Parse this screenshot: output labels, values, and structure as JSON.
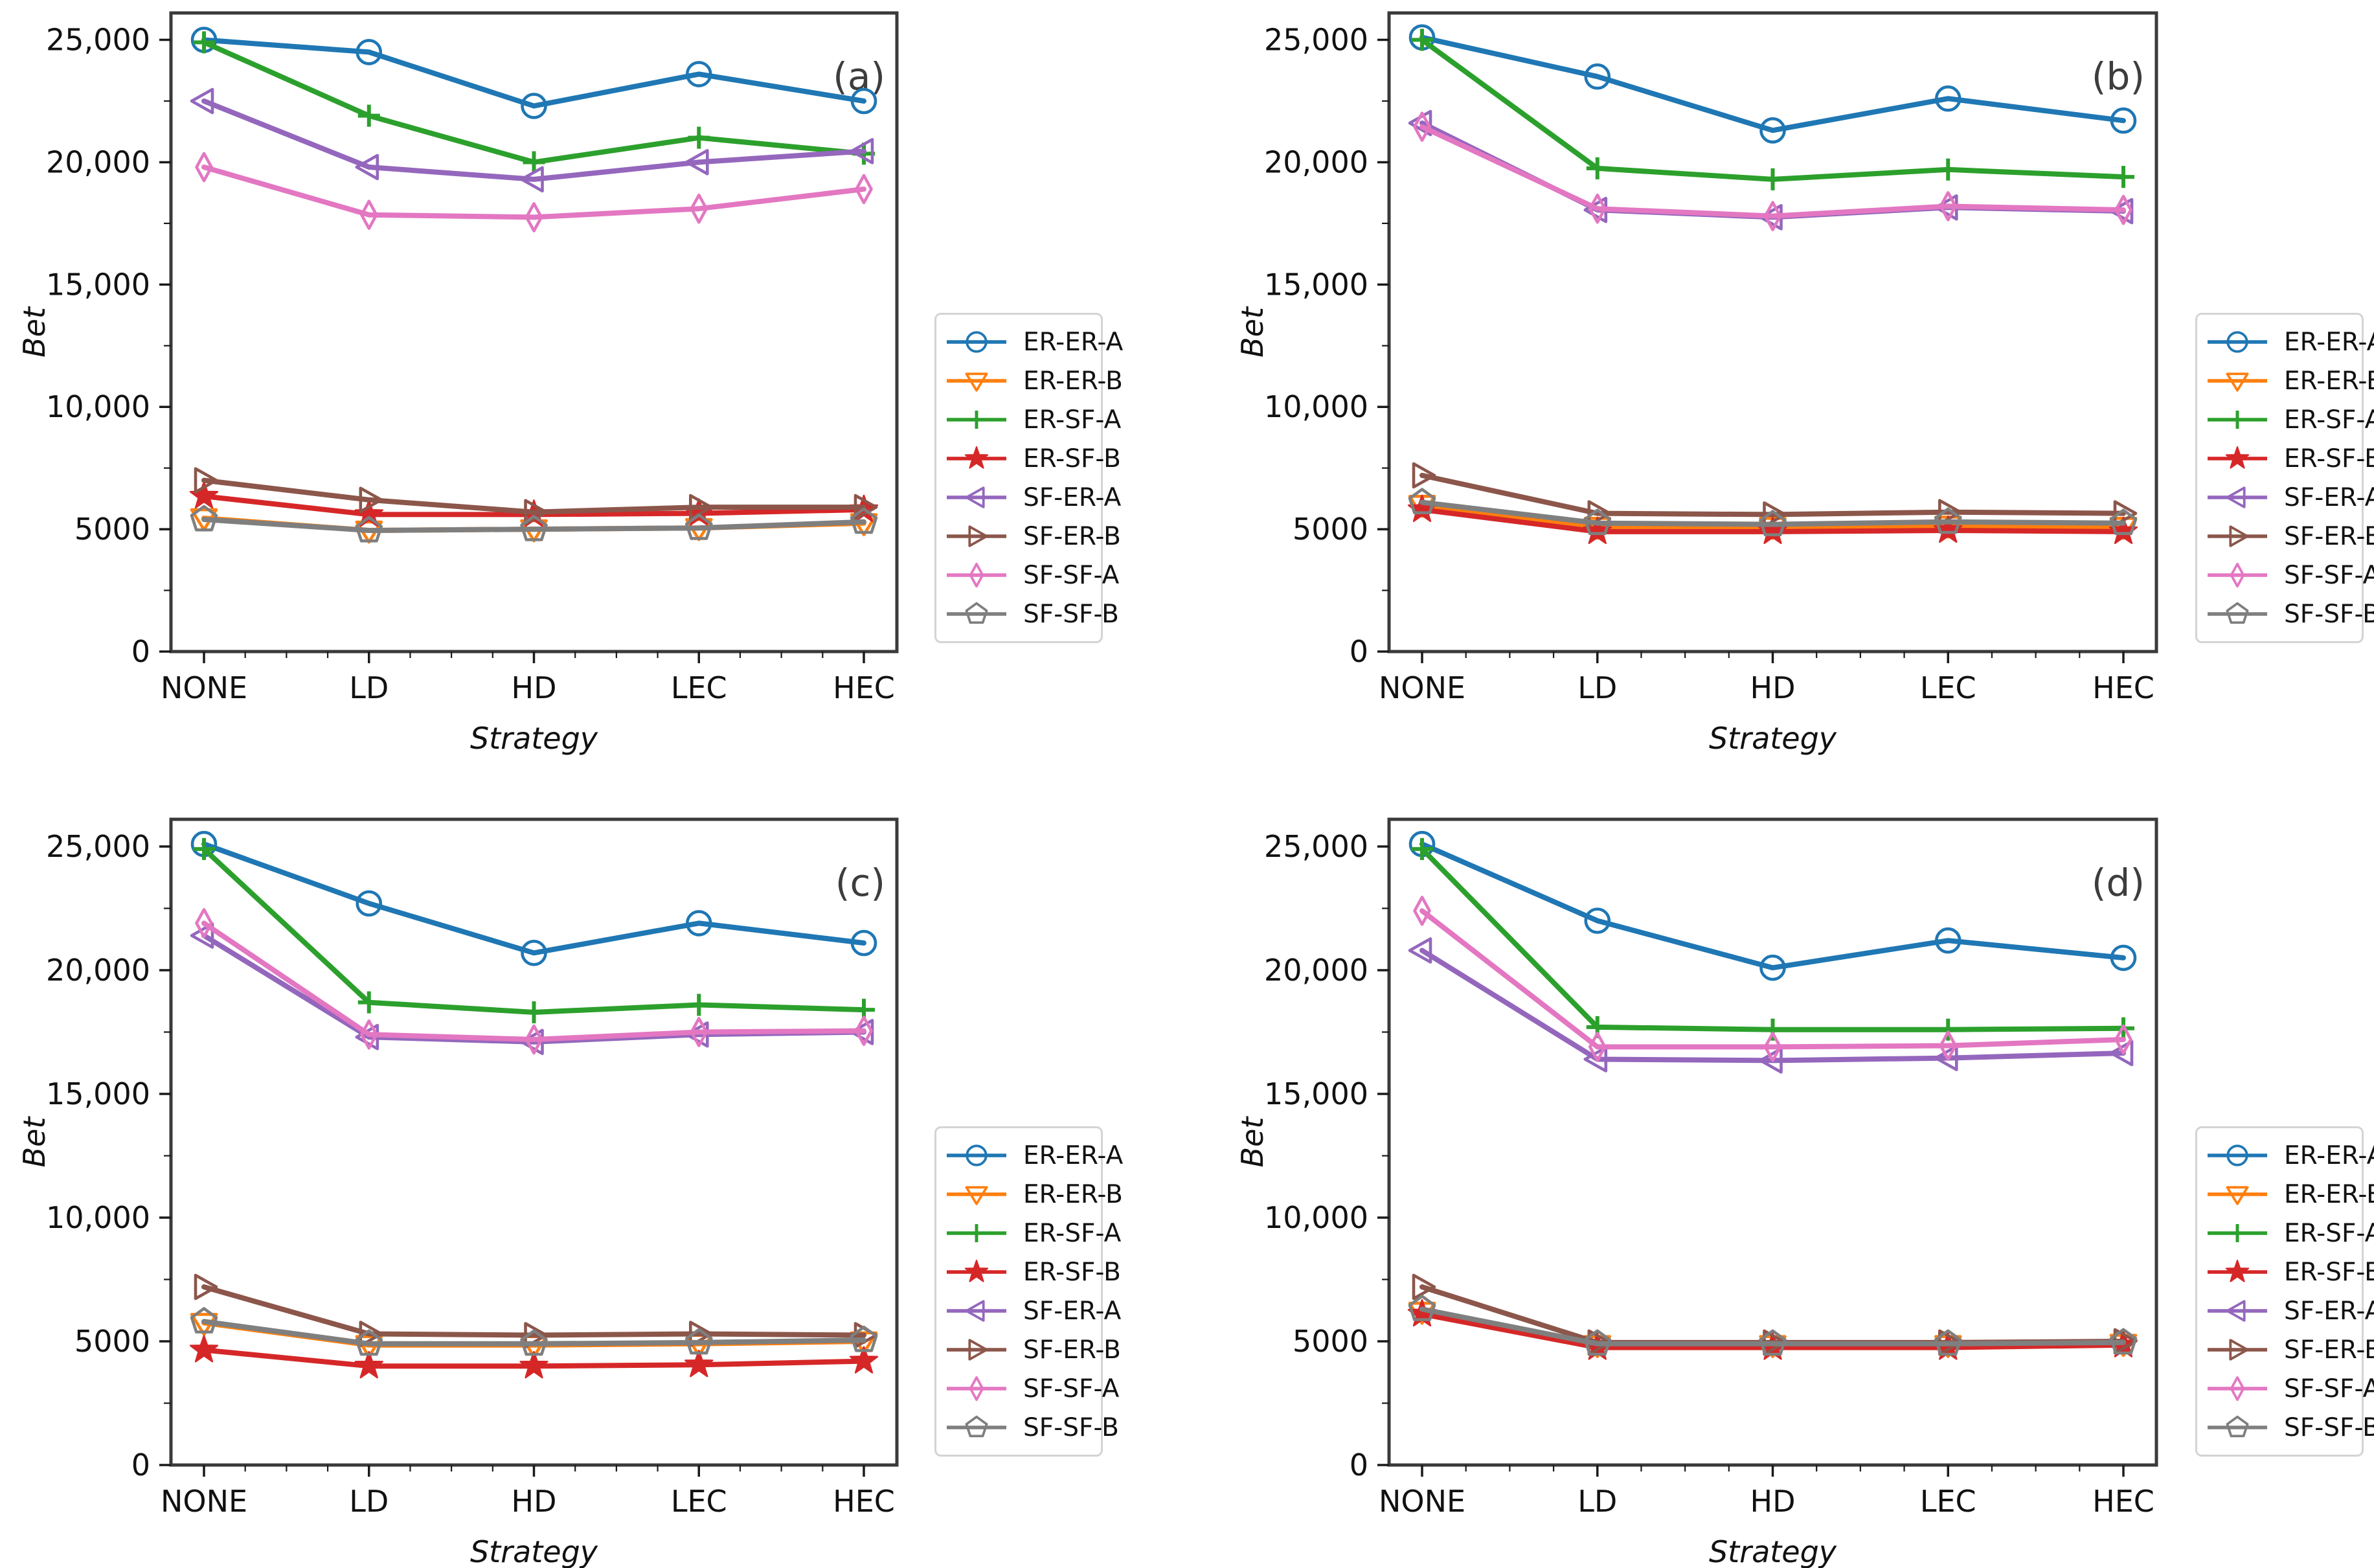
{
  "figure": {
    "background": "#ffffff",
    "spine_color": "#3a3a3a",
    "tick_color": "#1a1a1a",
    "text_color": "#111111",
    "panel_letter_color": "#3d3d3d"
  },
  "axis": {
    "xlabel": "Strategy",
    "ylabel": "Bet",
    "categories": [
      "NONE",
      "LD",
      "HD",
      "LEC",
      "HEC"
    ],
    "y_tick_values": [
      0,
      5000,
      10000,
      15000,
      20000,
      25000
    ],
    "y_tick_labels": [
      "0",
      "5000",
      "10,000",
      "15,000",
      "20,000",
      "25,000"
    ],
    "ylim": [
      0,
      26100
    ],
    "grid": false,
    "legend_position": "right"
  },
  "series_styles": [
    {
      "name": "ER-ER-A",
      "color": "#1f77b4",
      "marker": "circle"
    },
    {
      "name": "ER-ER-B",
      "color": "#ff7f0e",
      "marker": "triangle-down"
    },
    {
      "name": "ER-SF-A",
      "color": "#2ca02c",
      "marker": "plus"
    },
    {
      "name": "ER-SF-B",
      "color": "#d62728",
      "marker": "star"
    },
    {
      "name": "SF-ER-A",
      "color": "#9467bd",
      "marker": "triangle-left"
    },
    {
      "name": "SF-ER-B",
      "color": "#8c564b",
      "marker": "triangle-right"
    },
    {
      "name": "SF-SF-A",
      "color": "#e377c2",
      "marker": "thin-diamond"
    },
    {
      "name": "SF-SF-B",
      "color": "#7f7f7f",
      "marker": "pentagon"
    }
  ],
  "chart_data": [
    {
      "type": "line",
      "label": "(a)",
      "xlabel": "Strategy",
      "ylabel": "Bet",
      "categories": [
        "NONE",
        "LD",
        "HD",
        "LEC",
        "HEC"
      ],
      "ylim": [
        0,
        26100
      ],
      "series": [
        {
          "name": "ER-ER-A",
          "values": [
            25000,
            24500,
            22300,
            23600,
            22500
          ]
        },
        {
          "name": "ER-ER-B",
          "values": [
            5450,
            4950,
            5000,
            5050,
            5250
          ]
        },
        {
          "name": "ER-SF-A",
          "values": [
            24900,
            21900,
            20000,
            21000,
            20350
          ]
        },
        {
          "name": "ER-SF-B",
          "values": [
            6350,
            5600,
            5600,
            5650,
            5800
          ]
        },
        {
          "name": "SF-ER-A",
          "values": [
            22500,
            19800,
            19300,
            20000,
            20450
          ]
        },
        {
          "name": "SF-ER-B",
          "values": [
            7000,
            6200,
            5700,
            5900,
            5900
          ]
        },
        {
          "name": "SF-SF-A",
          "values": [
            19800,
            17850,
            17750,
            18100,
            18900
          ]
        },
        {
          "name": "SF-SF-B",
          "values": [
            5400,
            4950,
            5000,
            5050,
            5300
          ]
        }
      ]
    },
    {
      "type": "line",
      "label": "(b)",
      "xlabel": "Strategy",
      "ylabel": "Bet",
      "categories": [
        "NONE",
        "LD",
        "HD",
        "LEC",
        "HEC"
      ],
      "ylim": [
        0,
        26100
      ],
      "series": [
        {
          "name": "ER-ER-A",
          "values": [
            25100,
            23500,
            21300,
            22600,
            21700
          ]
        },
        {
          "name": "ER-ER-B",
          "values": [
            6000,
            5100,
            5100,
            5150,
            5100
          ]
        },
        {
          "name": "ER-SF-A",
          "values": [
            25000,
            19750,
            19300,
            19700,
            19400
          ]
        },
        {
          "name": "ER-SF-B",
          "values": [
            5800,
            4900,
            4900,
            4950,
            4900
          ]
        },
        {
          "name": "SF-ER-A",
          "values": [
            21600,
            18050,
            17750,
            18150,
            18000
          ]
        },
        {
          "name": "SF-ER-B",
          "values": [
            7200,
            5650,
            5600,
            5700,
            5650
          ]
        },
        {
          "name": "SF-SF-A",
          "values": [
            21450,
            18100,
            17800,
            18200,
            18050
          ]
        },
        {
          "name": "SF-SF-B",
          "values": [
            6100,
            5250,
            5200,
            5300,
            5250
          ]
        }
      ]
    },
    {
      "type": "line",
      "label": "(c)",
      "xlabel": "Strategy",
      "ylabel": "Bet",
      "categories": [
        "NONE",
        "LD",
        "HD",
        "LEC",
        "HEC"
      ],
      "ylim": [
        0,
        26100
      ],
      "series": [
        {
          "name": "ER-ER-A",
          "values": [
            25100,
            22700,
            20700,
            21900,
            21100
          ]
        },
        {
          "name": "ER-ER-B",
          "values": [
            5750,
            4850,
            4850,
            4900,
            5000
          ]
        },
        {
          "name": "ER-SF-A",
          "values": [
            24900,
            18700,
            18300,
            18600,
            18400
          ]
        },
        {
          "name": "ER-SF-B",
          "values": [
            4650,
            4000,
            4000,
            4050,
            4200
          ]
        },
        {
          "name": "SF-ER-A",
          "values": [
            21400,
            17300,
            17100,
            17400,
            17500
          ]
        },
        {
          "name": "SF-ER-B",
          "values": [
            7200,
            5300,
            5250,
            5300,
            5250
          ]
        },
        {
          "name": "SF-SF-A",
          "values": [
            21900,
            17400,
            17200,
            17500,
            17550
          ]
        },
        {
          "name": "SF-SF-B",
          "values": [
            5800,
            4900,
            4900,
            4950,
            5050
          ]
        }
      ]
    },
    {
      "type": "line",
      "label": "(d)",
      "xlabel": "Strategy",
      "ylabel": "Bet",
      "categories": [
        "NONE",
        "LD",
        "HD",
        "LEC",
        "HEC"
      ],
      "ylim": [
        0,
        26100
      ],
      "series": [
        {
          "name": "ER-ER-A",
          "values": [
            25100,
            22000,
            20100,
            21200,
            20500
          ]
        },
        {
          "name": "ER-ER-B",
          "values": [
            6200,
            4850,
            4850,
            4850,
            4900
          ]
        },
        {
          "name": "ER-SF-A",
          "values": [
            24900,
            17700,
            17600,
            17600,
            17650
          ]
        },
        {
          "name": "ER-SF-B",
          "values": [
            6100,
            4750,
            4750,
            4750,
            4850
          ]
        },
        {
          "name": "SF-ER-A",
          "values": [
            20800,
            16400,
            16350,
            16450,
            16650
          ]
        },
        {
          "name": "SF-ER-B",
          "values": [
            7200,
            4950,
            4950,
            4950,
            5000
          ]
        },
        {
          "name": "SF-SF-A",
          "values": [
            22400,
            16900,
            16900,
            16950,
            17200
          ]
        },
        {
          "name": "SF-SF-B",
          "values": [
            6300,
            4900,
            4900,
            4900,
            4950
          ]
        }
      ]
    }
  ]
}
